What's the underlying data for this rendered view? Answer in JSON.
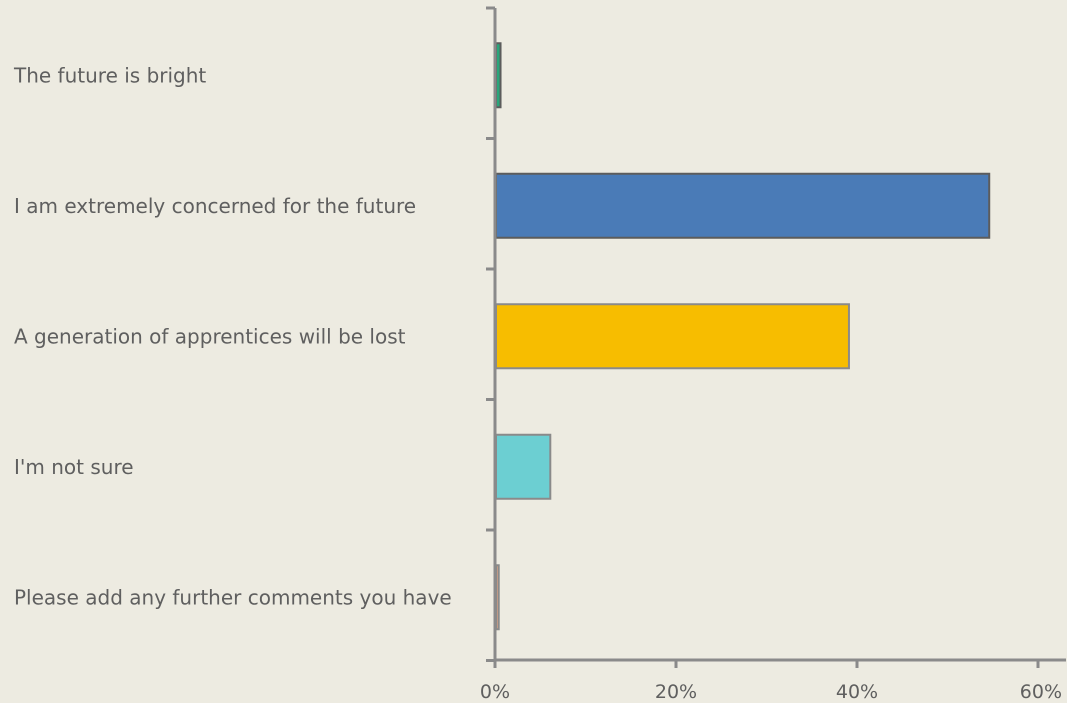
{
  "chart_data": {
    "type": "bar",
    "orientation": "horizontal",
    "title": "",
    "xlabel": "",
    "ylabel": "",
    "categories": [
      "The future is bright",
      "I am extremely concerned for the future",
      "A generation of apprentices will be lost",
      "I'm not sure",
      "Please add any further comments you have"
    ],
    "values": [
      0.5,
      54.5,
      39.0,
      6.0,
      0.3
    ],
    "xlim": [
      0,
      60
    ],
    "x_ticks": [
      "0%",
      "20%",
      "40%",
      "60%"
    ],
    "grid": false,
    "legend": "none",
    "colors": [
      "#2aa57a",
      "#4a7bb7",
      "#f7bd00",
      "#6ccfd2",
      "#d6a085"
    ],
    "edge_colors": [
      "#5c5c5c",
      "#5c5c5c",
      "#8a8a8a",
      "#8a8a8a",
      "#8a8a8a"
    ],
    "text_color": "#5f5f5f",
    "axis_color": "#8a8a8a",
    "background": "#edebe1"
  }
}
